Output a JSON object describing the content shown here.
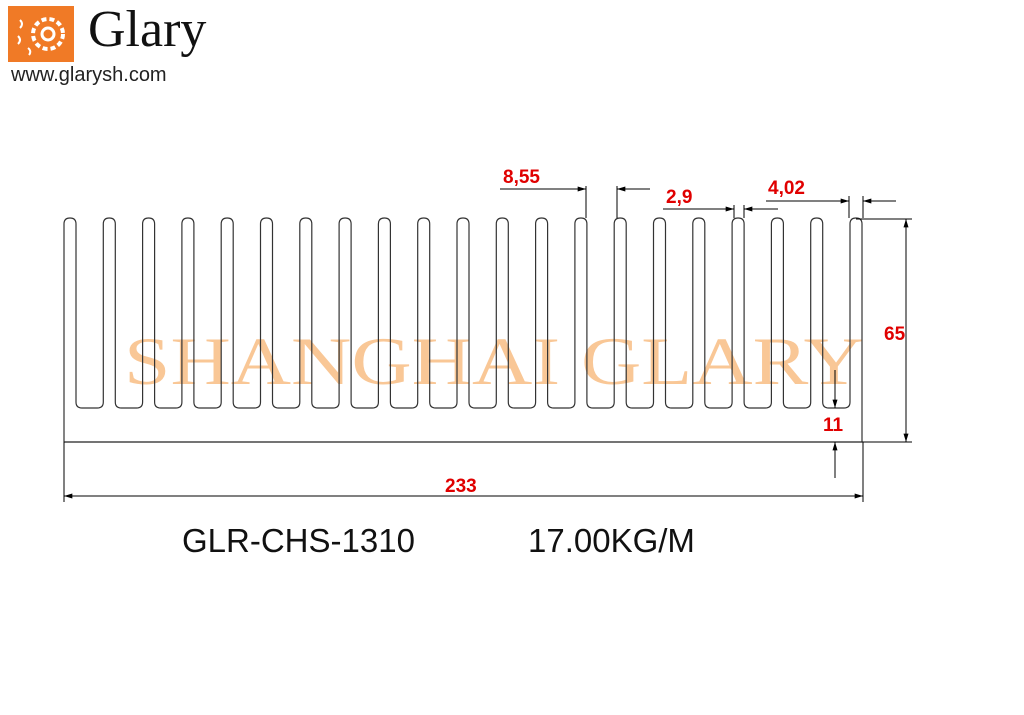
{
  "logo": {
    "name": "Glary",
    "url": "www.glarysh.com",
    "brand_color": "#f07a26"
  },
  "watermark": {
    "text": "SHANGHAI GLARY",
    "color": "#f9c796"
  },
  "dimensions": {
    "fin_pitch": "8,55",
    "fin_width": "2,9",
    "edge_fin": "4,02",
    "height": "65",
    "base": "11",
    "width": "233"
  },
  "dimension_color": "#e00000",
  "fin_count": 21,
  "caption": {
    "part_number": "GLR-CHS-1310",
    "weight": "17.00KG/M"
  }
}
